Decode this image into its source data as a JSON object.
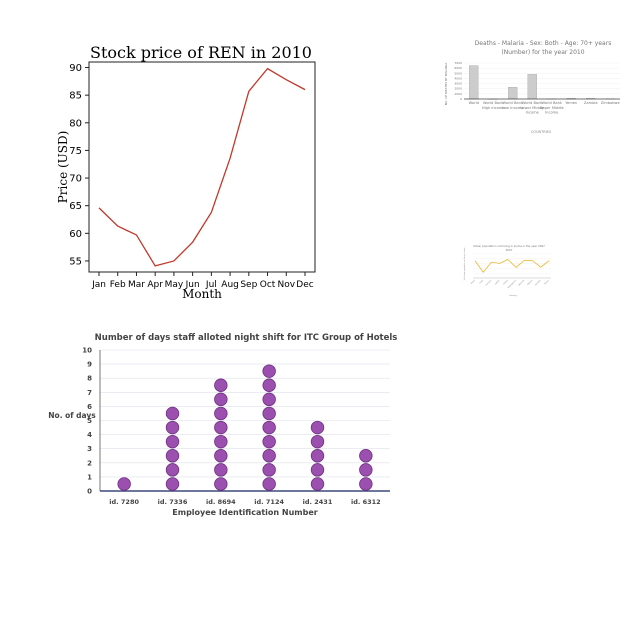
{
  "chart_data": [
    {
      "type": "line",
      "title": "Stock price of REN in 2010",
      "xlabel": "Month",
      "ylabel": "Price (USD)",
      "categories": [
        "Jan",
        "Feb",
        "Mar",
        "Apr",
        "May",
        "Jun",
        "Jul",
        "Aug",
        "Sep",
        "Oct",
        "Nov",
        "Dec"
      ],
      "values": [
        64.6,
        61.3,
        59.7,
        54.1,
        55.0,
        58.4,
        63.8,
        73.6,
        85.7,
        89.8,
        87.8,
        86.0
      ],
      "ylim": [
        53,
        91
      ],
      "yticks": [
        55,
        60,
        65,
        70,
        75,
        80,
        85,
        90
      ],
      "grid": false,
      "color": "#c0392b"
    },
    {
      "type": "bar",
      "title": "Deaths - Malaria - Sex: Both - Age: 70+ years (Number) for the year 2010",
      "xlabel": "COUNTRIES",
      "ylabel": "NO. OF DEATHS BY MALARIA",
      "categories": [
        "World",
        "World Bank High Income",
        "World Bank Low Income",
        "World Bank Lower Middle Income",
        "World Bank Upper Middle Income",
        "Yemen",
        "Zambia",
        "Zimbabwe"
      ],
      "values": [
        6500,
        0,
        2300,
        4800,
        20,
        150,
        120,
        60
      ],
      "ylim": [
        0,
        7000
      ],
      "yticks": [
        0,
        1000,
        2000,
        3000,
        4000,
        5000,
        6000,
        7000
      ],
      "color": "#cccccc"
    },
    {
      "type": "line",
      "title": "Urban population not living in slums in the year 2007",
      "xlabel": "Country",
      "ylabel": "% of urban population not living in slums",
      "categories": [
        "Brazil",
        "Chad",
        "Comoros",
        "Gabon",
        "Ghana",
        "Madagascar",
        "Namibia",
        "Nigeria",
        "Somalia",
        "Yemen"
      ],
      "values": [
        72,
        24,
        66,
        61,
        77,
        44,
        74,
        72,
        45,
        72
      ],
      "color": "#f0b429"
    },
    {
      "type": "scatter",
      "title": "Number of days staff alloted night shift for ITC Group of Hotels",
      "xlabel": "Employee Identification Number",
      "ylabel": "No. of days",
      "categories": [
        "id. 7280",
        "id. 7336",
        "id. 8694",
        "id. 7124",
        "id. 2431",
        "id. 6312"
      ],
      "values": [
        1,
        6,
        8,
        9,
        5,
        3
      ],
      "ylim": [
        0,
        10
      ],
      "yticks": [
        0,
        1,
        2,
        3,
        4,
        5,
        6,
        7,
        8,
        9,
        10
      ],
      "grid": true,
      "color": "#9b4fae"
    }
  ]
}
